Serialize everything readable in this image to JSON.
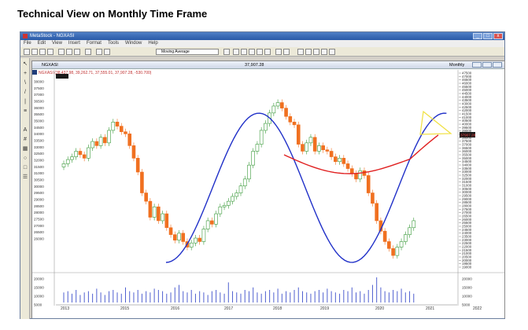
{
  "heading": "Technical View on Monthly Time Frame",
  "app": {
    "title": "MetaStock - NGXASI",
    "menu": [
      "File",
      "Edit",
      "View",
      "Insert",
      "Format",
      "Tools",
      "Window",
      "Help"
    ],
    "indicator_select": "Moving Average",
    "window_buttons": [
      "_",
      "□",
      "x"
    ]
  },
  "chart_window": {
    "symbol": "NGXASI",
    "last_value": "37,907.28",
    "period": "Monthly",
    "info_line": "NGXASI (38,437.98, 39,262.71, 37,555.01, 37,907.28, -530.700)"
  },
  "chart_data": {
    "type": "candlestick",
    "series": [
      {
        "name": "Candles",
        "values_desc": "monthly OHLC"
      }
    ],
    "x_ticks": [
      "2013",
      "2015",
      "2016",
      "2017",
      "2018",
      "2019",
      "2020",
      "2021",
      "2022"
    ],
    "price_ticks_left": [
      "38000",
      "37500",
      "37000",
      "36500",
      "36000",
      "35500",
      "35000",
      "34500",
      "34000",
      "33500",
      "33000",
      "32500",
      "32000",
      "31500",
      "31000",
      "30500",
      "30000",
      "29500",
      "29000",
      "28500",
      "28000",
      "27500",
      "27000",
      "26500",
      "26000"
    ],
    "price_ticks_right": [
      "47500",
      "47000",
      "46500",
      "46000",
      "45500",
      "45000",
      "44500",
      "44000",
      "43500",
      "43000",
      "42500",
      "42000",
      "41500",
      "41000",
      "40500",
      "40000",
      "39500",
      "39000",
      "38500",
      "38000",
      "37500",
      "37000",
      "36500",
      "36000",
      "35500",
      "35000",
      "34500",
      "34000",
      "33500",
      "33000",
      "32500",
      "32000",
      "31500",
      "31000",
      "30500",
      "30000",
      "29500",
      "29000",
      "28500",
      "28000",
      "27500",
      "27000",
      "26500",
      "26000",
      "25500",
      "25000",
      "24500",
      "24000",
      "23500",
      "23000",
      "22500",
      "22000",
      "21500",
      "21000",
      "20500",
      "20000",
      "19500",
      "19000"
    ],
    "volume_ticks": [
      "20000",
      "15000",
      "10000",
      "5000"
    ],
    "current_price_label": "37907.28"
  }
}
